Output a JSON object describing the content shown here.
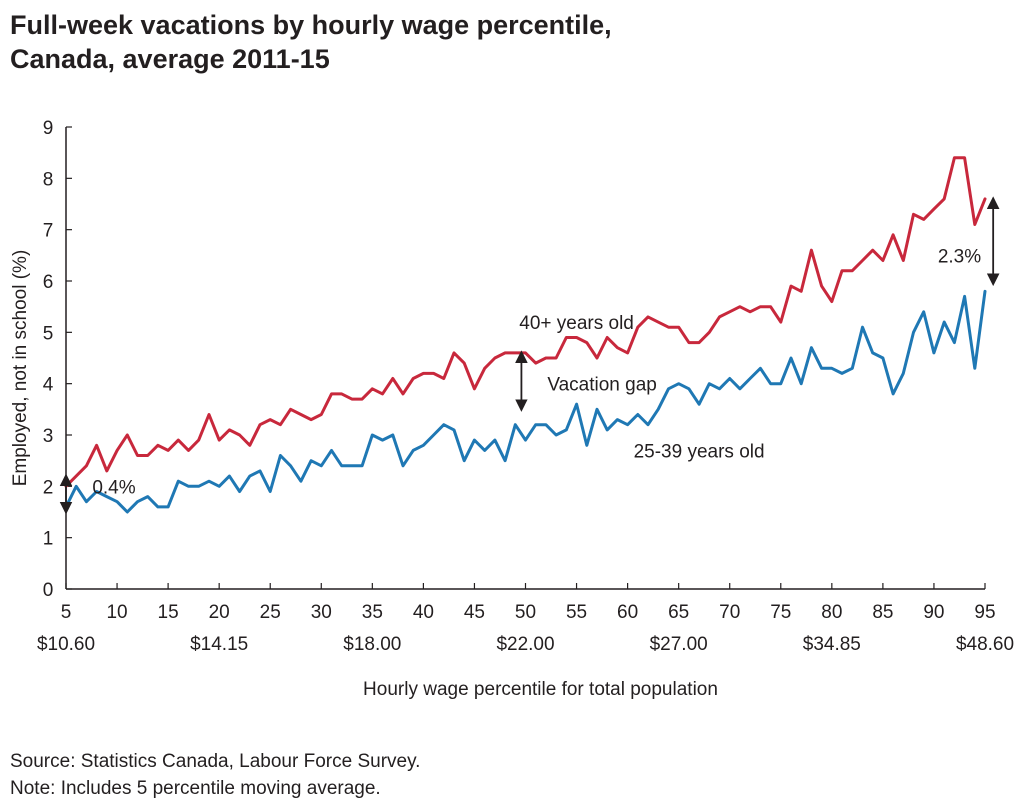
{
  "chart_data": {
    "type": "line",
    "title": "Full-week vacations by hourly wage percentile, Canada, average 2011-15",
    "title_lines": [
      "Full-week vacations by hourly wage percentile,",
      "Canada, average 2011-15"
    ],
    "xlabel": "Hourly wage percentile for total population",
    "ylabel": "Employed, not in school (%)",
    "xlim": [
      5,
      95
    ],
    "ylim": [
      0,
      9
    ],
    "x_ticks": [
      5,
      10,
      15,
      20,
      25,
      30,
      35,
      40,
      45,
      50,
      55,
      60,
      65,
      70,
      75,
      80,
      85,
      90,
      95
    ],
    "y_ticks": [
      0,
      1,
      2,
      3,
      4,
      5,
      6,
      7,
      8,
      9
    ],
    "wage_labels": [
      {
        "x": 5,
        "label": "$10.60"
      },
      {
        "x": 20,
        "label": "$14.15"
      },
      {
        "x": 35,
        "label": "$18.00"
      },
      {
        "x": 50,
        "label": "$22.00"
      },
      {
        "x": 65,
        "label": "$27.00"
      },
      {
        "x": 80,
        "label": "$34.85"
      },
      {
        "x": 95,
        "label": "$48.60"
      }
    ],
    "x": [
      5,
      6,
      7,
      8,
      9,
      10,
      11,
      12,
      13,
      14,
      15,
      16,
      17,
      18,
      19,
      20,
      21,
      22,
      23,
      24,
      25,
      26,
      27,
      28,
      29,
      30,
      31,
      32,
      33,
      34,
      35,
      36,
      37,
      38,
      39,
      40,
      41,
      42,
      43,
      44,
      45,
      46,
      47,
      48,
      49,
      50,
      51,
      52,
      53,
      54,
      55,
      56,
      57,
      58,
      59,
      60,
      61,
      62,
      63,
      64,
      65,
      66,
      67,
      68,
      69,
      70,
      71,
      72,
      73,
      74,
      75,
      76,
      77,
      78,
      79,
      80,
      81,
      82,
      83,
      84,
      85,
      86,
      87,
      88,
      89,
      90,
      91,
      92,
      93,
      94,
      95
    ],
    "series": [
      {
        "name": "40+ years old",
        "color": "#c8283c",
        "values": [
          2.0,
          2.2,
          2.4,
          2.8,
          2.3,
          2.7,
          3.0,
          2.6,
          2.6,
          2.8,
          2.7,
          2.9,
          2.7,
          2.9,
          3.4,
          2.9,
          3.1,
          3.0,
          2.8,
          3.2,
          3.3,
          3.2,
          3.5,
          3.4,
          3.3,
          3.4,
          3.8,
          3.8,
          3.7,
          3.7,
          3.9,
          3.8,
          4.1,
          3.8,
          4.1,
          4.2,
          4.2,
          4.1,
          4.6,
          4.4,
          3.9,
          4.3,
          4.5,
          4.6,
          4.6,
          4.6,
          4.4,
          4.5,
          4.5,
          4.9,
          4.9,
          4.8,
          4.5,
          4.9,
          4.7,
          4.6,
          5.1,
          5.3,
          5.2,
          5.1,
          5.1,
          4.8,
          4.8,
          5.0,
          5.3,
          5.4,
          5.5,
          5.4,
          5.5,
          5.5,
          5.2,
          5.9,
          5.8,
          6.6,
          5.9,
          5.6,
          6.2,
          6.2,
          6.4,
          6.6,
          6.4,
          6.9,
          6.4,
          7.3,
          7.2,
          7.4,
          7.6,
          8.4,
          8.4,
          7.1,
          7.6
        ]
      },
      {
        "name": "25-39 years old",
        "color": "#1f78b4",
        "values": [
          1.6,
          2.0,
          1.7,
          1.9,
          1.8,
          1.7,
          1.5,
          1.7,
          1.8,
          1.6,
          1.6,
          2.1,
          2.0,
          2.0,
          2.1,
          2.0,
          2.2,
          1.9,
          2.2,
          2.3,
          1.9,
          2.6,
          2.4,
          2.1,
          2.5,
          2.4,
          2.7,
          2.4,
          2.4,
          2.4,
          3.0,
          2.9,
          3.0,
          2.4,
          2.7,
          2.8,
          3.0,
          3.2,
          3.1,
          2.5,
          2.9,
          2.7,
          2.9,
          2.5,
          3.2,
          2.9,
          3.2,
          3.2,
          3.0,
          3.1,
          3.6,
          2.8,
          3.5,
          3.1,
          3.3,
          3.2,
          3.4,
          3.2,
          3.5,
          3.9,
          4.0,
          3.9,
          3.6,
          4.0,
          3.9,
          4.1,
          3.9,
          4.1,
          4.3,
          4.0,
          4.0,
          4.5,
          4.0,
          4.7,
          4.3,
          4.3,
          4.2,
          4.3,
          5.1,
          4.6,
          4.5,
          3.8,
          4.2,
          5.0,
          5.4,
          4.6,
          5.2,
          4.8,
          5.7,
          4.3,
          5.8
        ]
      }
    ],
    "annotations": [
      {
        "text": "40+ years old",
        "x": 55,
        "y": 5.2
      },
      {
        "text": "25-39 years old",
        "x": 67,
        "y": 2.7
      },
      {
        "text": "Vacation gap",
        "x": 57.5,
        "y": 4.0
      },
      {
        "text": "0.4%",
        "x": 9.7,
        "y": 2.0
      },
      {
        "text": "2.3%",
        "x": 92.5,
        "y": 6.5
      }
    ],
    "gap_arrows": [
      {
        "x": 49.6,
        "y_from": 3.5,
        "y_to": 4.6
      },
      {
        "x": 5.0,
        "y_from": 1.5,
        "y_to": 2.2
      },
      {
        "x": 95.8,
        "y_from": 5.95,
        "y_to": 7.6
      }
    ]
  },
  "footer": {
    "source": "Source: Statistics Canada, Labour Force Survey.",
    "note": "Note: Includes 5 percentile moving average."
  }
}
